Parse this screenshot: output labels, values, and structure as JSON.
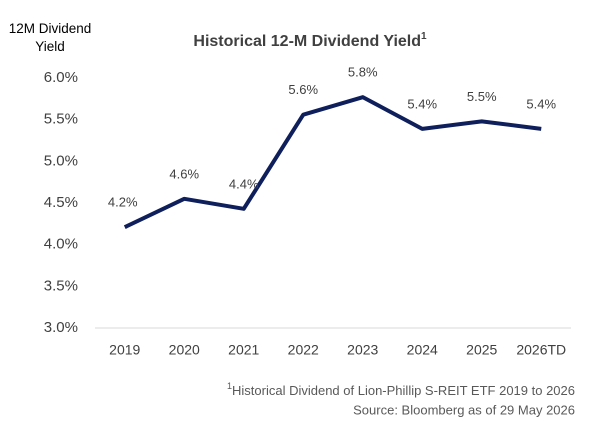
{
  "chart_data": {
    "type": "line",
    "title": "Historical 12-M Dividend Yield",
    "title_note": "1",
    "y_label": "12M Dividend Yield",
    "categories": [
      "2019",
      "2020",
      "2021",
      "2022",
      "2023",
      "2024",
      "2025",
      "2026TD"
    ],
    "values": [
      4.21,
      4.55,
      4.43,
      5.56,
      5.77,
      5.39,
      5.48,
      5.39
    ],
    "value_labels": [
      "4.2%",
      "4.6%",
      "4.4%",
      "5.6%",
      "5.8%",
      "5.4%",
      "5.5%",
      "5.4%"
    ],
    "color": "#0e1f5b",
    "ylim": [
      3.0,
      6.0
    ],
    "yticks": [
      {
        "value": 3.0,
        "label": "3.0%"
      },
      {
        "value": 3.5,
        "label": "3.5%"
      },
      {
        "value": 4.0,
        "label": "4.0%"
      },
      {
        "value": 4.5,
        "label": "4.5%"
      },
      {
        "value": 5.0,
        "label": "5.0%"
      },
      {
        "value": 5.5,
        "label": "5.5%"
      },
      {
        "value": 6.0,
        "label": "6.0%"
      }
    ],
    "grid": false,
    "footnote_marker": "1",
    "footnote": "Historical Dividend of Lion-Phillip S-REIT ETF 2019 to 2026",
    "source": "Source: Bloomberg as of 29 May 2026"
  }
}
